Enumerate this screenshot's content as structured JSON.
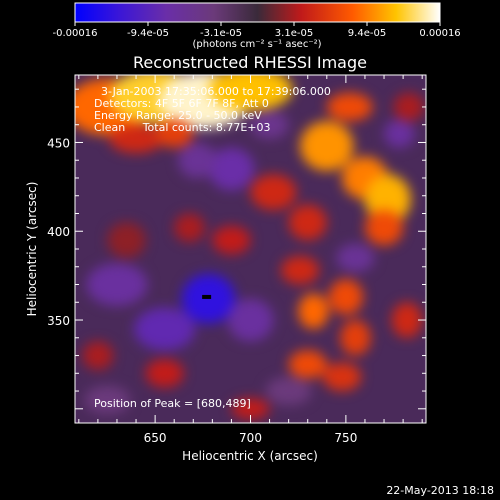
{
  "footer": {
    "timestamp": "22-May-2013 18:18"
  },
  "colorbar": {
    "ticks": [
      "-0.00016",
      "-9.4e-05",
      "-3.1e-05",
      "3.1e-05",
      "9.4e-05",
      "0.00016"
    ],
    "unit_label": "(photons cm⁻² s⁻¹ asec⁻²)",
    "stops": [
      {
        "t": 0.0,
        "color": "#0000ff"
      },
      {
        "t": 0.12,
        "color": "#3a16d8"
      },
      {
        "t": 0.25,
        "color": "#6a2ea8"
      },
      {
        "t": 0.38,
        "color": "#6b3a7a"
      },
      {
        "t": 0.5,
        "color": "#3a2a3a"
      },
      {
        "t": 0.62,
        "color": "#c01a1a"
      },
      {
        "t": 0.76,
        "color": "#ff5a00"
      },
      {
        "t": 0.88,
        "color": "#ffc400"
      },
      {
        "t": 1.0,
        "color": "#ffffff"
      }
    ]
  },
  "chart_data": {
    "type": "heatmap",
    "title": "Reconstructed RHESSI Image",
    "xlabel": "Heliocentric X (arcsec)",
    "ylabel": "Heliocentric Y (arcsec)",
    "xlim": [
      608,
      792
    ],
    "ylim": [
      292,
      488
    ],
    "xticks": [
      650,
      700,
      750
    ],
    "yticks": [
      350,
      400,
      450
    ],
    "annotations": [
      "3-Jan-2003 17:35:06.000 to 17:39:06.000",
      "Detectors: 4F 5F 6F 7F 8F, Att 0",
      "Energy Range: 25.0 - 50.0 keV",
      "Clean     Total counts: 8.77E+03"
    ],
    "peak_label": "Position of Peak = [680,489]",
    "marker": {
      "x": 677,
      "y": 363
    },
    "blobs": [
      {
        "x": 625,
        "y": 470,
        "v": 0.55,
        "rx": 22,
        "ry": 16
      },
      {
        "x": 650,
        "y": 476,
        "v": 0.8,
        "rx": 24,
        "ry": 15
      },
      {
        "x": 676,
        "y": 474,
        "v": 0.95,
        "rx": 24,
        "ry": 16
      },
      {
        "x": 700,
        "y": 480,
        "v": 0.75,
        "rx": 22,
        "ry": 12
      },
      {
        "x": 640,
        "y": 452,
        "v": 0.3,
        "rx": 14,
        "ry": 8
      },
      {
        "x": 660,
        "y": 455,
        "v": 0.4,
        "rx": 10,
        "ry": 8
      },
      {
        "x": 740,
        "y": 448,
        "v": 0.65,
        "rx": 14,
        "ry": 14
      },
      {
        "x": 760,
        "y": 430,
        "v": 0.6,
        "rx": 12,
        "ry": 12
      },
      {
        "x": 772,
        "y": 418,
        "v": 0.72,
        "rx": 12,
        "ry": 14
      },
      {
        "x": 770,
        "y": 402,
        "v": 0.45,
        "rx": 10,
        "ry": 10
      },
      {
        "x": 752,
        "y": 470,
        "v": 0.45,
        "rx": 12,
        "ry": 8
      },
      {
        "x": 783,
        "y": 470,
        "v": 0.2,
        "rx": 8,
        "ry": 8
      },
      {
        "x": 712,
        "y": 422,
        "v": 0.3,
        "rx": 12,
        "ry": 10
      },
      {
        "x": 730,
        "y": 405,
        "v": 0.3,
        "rx": 10,
        "ry": 10
      },
      {
        "x": 690,
        "y": 395,
        "v": 0.25,
        "rx": 10,
        "ry": 8
      },
      {
        "x": 668,
        "y": 402,
        "v": 0.2,
        "rx": 8,
        "ry": 8
      },
      {
        "x": 726,
        "y": 378,
        "v": 0.3,
        "rx": 10,
        "ry": 8
      },
      {
        "x": 750,
        "y": 363,
        "v": 0.45,
        "rx": 9,
        "ry": 10
      },
      {
        "x": 733,
        "y": 355,
        "v": 0.55,
        "rx": 8,
        "ry": 10
      },
      {
        "x": 755,
        "y": 340,
        "v": 0.4,
        "rx": 8,
        "ry": 10
      },
      {
        "x": 782,
        "y": 350,
        "v": 0.3,
        "rx": 8,
        "ry": 10
      },
      {
        "x": 730,
        "y": 325,
        "v": 0.45,
        "rx": 10,
        "ry": 8
      },
      {
        "x": 748,
        "y": 318,
        "v": 0.35,
        "rx": 10,
        "ry": 8
      },
      {
        "x": 655,
        "y": 320,
        "v": 0.25,
        "rx": 10,
        "ry": 8
      },
      {
        "x": 620,
        "y": 330,
        "v": 0.2,
        "rx": 8,
        "ry": 8
      },
      {
        "x": 700,
        "y": 300,
        "v": 0.25,
        "rx": 10,
        "ry": 6
      },
      {
        "x": 635,
        "y": 395,
        "v": 0.15,
        "rx": 10,
        "ry": 10
      },
      {
        "x": 630,
        "y": 370,
        "v": -0.45,
        "rx": 16,
        "ry": 12
      },
      {
        "x": 655,
        "y": 345,
        "v": -0.55,
        "rx": 16,
        "ry": 12
      },
      {
        "x": 678,
        "y": 362,
        "v": -0.8,
        "rx": 14,
        "ry": 14
      },
      {
        "x": 700,
        "y": 350,
        "v": -0.45,
        "rx": 12,
        "ry": 12
      },
      {
        "x": 690,
        "y": 435,
        "v": -0.5,
        "rx": 12,
        "ry": 12
      },
      {
        "x": 672,
        "y": 440,
        "v": -0.4,
        "rx": 10,
        "ry": 10
      },
      {
        "x": 710,
        "y": 460,
        "v": -0.35,
        "rx": 10,
        "ry": 8
      },
      {
        "x": 778,
        "y": 455,
        "v": -0.45,
        "rx": 8,
        "ry": 8
      },
      {
        "x": 755,
        "y": 385,
        "v": -0.4,
        "rx": 10,
        "ry": 8
      },
      {
        "x": 720,
        "y": 310,
        "v": -0.25,
        "rx": 12,
        "ry": 8
      },
      {
        "x": 625,
        "y": 305,
        "v": -0.25,
        "rx": 12,
        "ry": 8
      }
    ]
  }
}
